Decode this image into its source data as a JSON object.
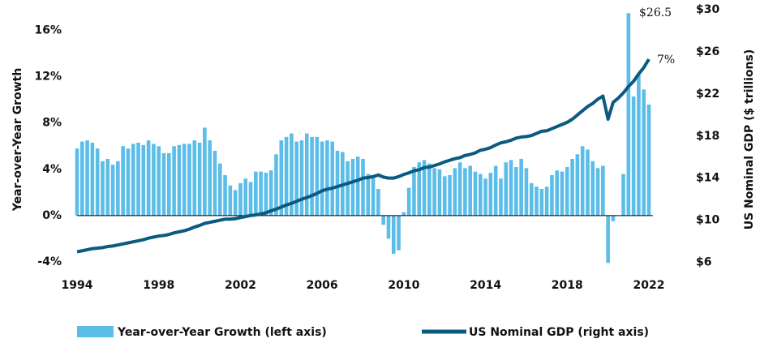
{
  "chart_data": {
    "type": "bar_line",
    "y_label": "Year-over-Year Growth",
    "y2_label": "US Nominal GDP ($ trillions)",
    "annotations": [
      "$26.5",
      "7%"
    ],
    "x": [
      1994,
      1994.25,
      1994.5,
      1994.75,
      1995,
      1995.25,
      1995.5,
      1995.75,
      1996,
      1996.25,
      1996.5,
      1996.75,
      1997,
      1997.25,
      1997.5,
      1997.75,
      1998,
      1998.25,
      1998.5,
      1998.75,
      1999,
      1999.25,
      1999.5,
      1999.75,
      2000,
      2000.25,
      2000.5,
      2000.75,
      2001,
      2001.25,
      2001.5,
      2001.75,
      2002,
      2002.25,
      2002.5,
      2002.75,
      2003,
      2003.25,
      2003.5,
      2003.75,
      2004,
      2004.25,
      2004.5,
      2004.75,
      2005,
      2005.25,
      2005.5,
      2005.75,
      2006,
      2006.25,
      2006.5,
      2006.75,
      2007,
      2007.25,
      2007.5,
      2007.75,
      2008,
      2008.25,
      2008.5,
      2008.75,
      2009,
      2009.25,
      2009.5,
      2009.75,
      2010,
      2010.25,
      2010.5,
      2010.75,
      2011,
      2011.25,
      2011.5,
      2011.75,
      2012,
      2012.25,
      2012.5,
      2012.75,
      2013,
      2013.25,
      2013.5,
      2013.75,
      2014,
      2014.25,
      2014.5,
      2014.75,
      2015,
      2015.25,
      2015.5,
      2015.75,
      2016,
      2016.25,
      2016.5,
      2016.75,
      2017,
      2017.25,
      2017.5,
      2017.75,
      2018,
      2018.25,
      2018.5,
      2018.75,
      2019,
      2019.25,
      2019.5,
      2019.75,
      2020,
      2020.25,
      2020.5,
      2020.75,
      2021,
      2021.25,
      2021.5,
      2021.75,
      2022
    ],
    "series": [
      {
        "name": "Year-over-Year Growth (left axis)",
        "color": "#5cbde8",
        "type": "bar",
        "values": [
          5.8,
          6.4,
          6.5,
          6.3,
          5.8,
          4.7,
          4.9,
          4.4,
          4.7,
          6.0,
          5.8,
          6.2,
          6.3,
          6.1,
          6.5,
          6.2,
          6.0,
          5.4,
          5.4,
          6.0,
          6.1,
          6.2,
          6.2,
          6.5,
          6.3,
          7.6,
          6.5,
          5.6,
          4.5,
          3.5,
          2.6,
          2.2,
          2.8,
          3.2,
          2.9,
          3.8,
          3.8,
          3.7,
          3.9,
          5.3,
          6.5,
          6.8,
          7.1,
          6.4,
          6.5,
          7.1,
          6.8,
          6.8,
          6.4,
          6.5,
          6.4,
          5.6,
          5.5,
          4.7,
          4.9,
          5.1,
          4.9,
          3.6,
          3.3,
          2.3,
          -0.8,
          -2.0,
          -3.3,
          -3.0,
          0.3,
          2.4,
          4.2,
          4.6,
          4.8,
          4.5,
          4.1,
          4.0,
          3.4,
          3.5,
          4.1,
          4.6,
          4.1,
          4.3,
          3.8,
          3.6,
          3.2,
          3.7,
          4.3,
          3.2,
          4.6,
          4.8,
          4.2,
          4.9,
          4.1,
          2.8,
          2.5,
          2.3,
          2.5,
          3.5,
          3.9,
          3.8,
          4.2,
          4.9,
          5.3,
          6.0,
          5.7,
          4.7,
          4.1,
          4.3,
          -4.1,
          -0.5,
          0,
          3.6,
          17.5,
          10.3,
          12.2,
          10.9,
          9.6
        ]
      },
      {
        "name": "US Nominal GDP (right axis)",
        "color": "#0b5a82",
        "type": "line",
        "axis": "y2",
        "values": [
          7.0,
          7.1,
          7.2,
          7.3,
          7.35,
          7.4,
          7.5,
          7.55,
          7.65,
          7.75,
          7.85,
          7.95,
          8.05,
          8.15,
          8.3,
          8.4,
          8.5,
          8.55,
          8.65,
          8.8,
          8.9,
          9.0,
          9.15,
          9.35,
          9.5,
          9.7,
          9.8,
          9.9,
          10.0,
          10.1,
          10.1,
          10.15,
          10.25,
          10.35,
          10.45,
          10.5,
          10.6,
          10.7,
          10.9,
          11.05,
          11.25,
          11.45,
          11.6,
          11.8,
          12.0,
          12.15,
          12.35,
          12.55,
          12.8,
          12.95,
          13.05,
          13.2,
          13.35,
          13.5,
          13.65,
          13.8,
          14.0,
          14.05,
          14.15,
          14.3,
          14.1,
          14.0,
          14.0,
          14.15,
          14.35,
          14.5,
          14.7,
          14.8,
          15.0,
          15.05,
          15.2,
          15.35,
          15.55,
          15.7,
          15.85,
          15.95,
          16.15,
          16.25,
          16.4,
          16.65,
          16.75,
          16.9,
          17.15,
          17.35,
          17.45,
          17.6,
          17.8,
          17.9,
          17.95,
          18.05,
          18.25,
          18.45,
          18.5,
          18.7,
          18.9,
          19.1,
          19.3,
          19.6,
          20.0,
          20.4,
          20.8,
          21.1,
          21.5,
          21.8,
          19.6,
          21.2,
          21.6,
          22.1,
          22.7,
          23.2,
          23.9,
          24.5,
          25.3
        ]
      }
    ],
    "xlim": [
      1994,
      2022.5
    ],
    "xticks": [
      1994,
      1998,
      2002,
      2006,
      2010,
      2014,
      2018,
      2022
    ],
    "ylim": [
      -4.5,
      17.8
    ],
    "yticks": [
      {
        "value": -4,
        "label": "-4%"
      },
      {
        "value": 0,
        "label": "0%"
      },
      {
        "value": 4,
        "label": "4%"
      },
      {
        "value": 8,
        "label": "8%"
      },
      {
        "value": 12,
        "label": "12%"
      },
      {
        "value": 16,
        "label": "16%"
      }
    ],
    "y2lim": [
      5.5,
      30
    ],
    "y2ticks": [
      {
        "value": 6,
        "label": "$6"
      },
      {
        "value": 10,
        "label": "$10"
      },
      {
        "value": 14,
        "label": "$14"
      },
      {
        "value": 18,
        "label": "$18"
      },
      {
        "value": 22,
        "label": "$22"
      },
      {
        "value": 26,
        "label": "$26"
      },
      {
        "value": 30,
        "label": "$30"
      }
    ]
  }
}
